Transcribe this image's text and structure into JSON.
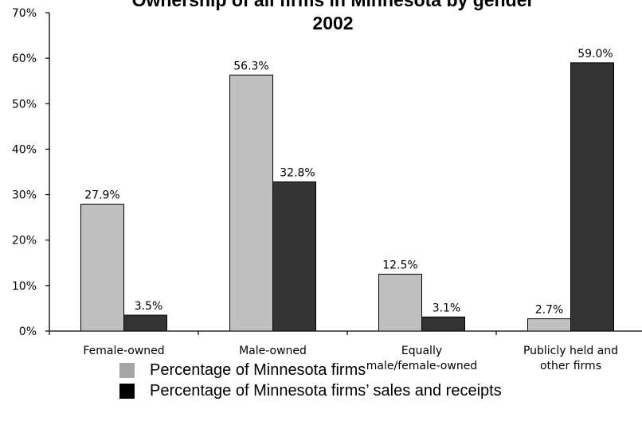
{
  "chart_data": {
    "type": "bar",
    "title": [
      "Ownership of all firms in Minnesota by gender",
      "2002"
    ],
    "categories": [
      [
        "Female-owned"
      ],
      [
        "Male-owned"
      ],
      [
        "Equally",
        "male/female-owned"
      ],
      [
        "Publicly held and",
        "other firms"
      ]
    ],
    "series": [
      {
        "name": "Percentage of Minnesota firms",
        "color": "#c0c0c0",
        "values": [
          27.9,
          56.3,
          12.5,
          2.7
        ]
      },
      {
        "name": "Percentage of Minnesota firms’ sales and receipts",
        "color": "#333333",
        "values": [
          3.5,
          32.8,
          3.1,
          59.0
        ]
      }
    ],
    "data_labels": [
      [
        "27.9%",
        "56.3%",
        "12.5%",
        "2.7%"
      ],
      [
        "3.5%",
        "32.8%",
        "3.1%",
        "59.0%"
      ]
    ],
    "y_ticks": [
      "0%",
      "10%",
      "20%",
      "30%",
      "40%",
      "50%",
      "60%",
      "70%"
    ],
    "ylim": [
      0,
      70
    ],
    "xlabel": "",
    "ylabel": "",
    "grid": false,
    "legend_position": "bottom"
  }
}
